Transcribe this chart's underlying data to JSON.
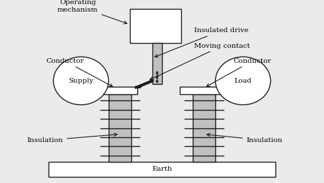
{
  "bg_color": "#ebebeb",
  "line_color": "#1a1a1a",
  "fill_gray": "#c0c0c0",
  "fill_white": "#ffffff",
  "labels": {
    "operating_mechanism": "Operating\nmechanism",
    "insulated_drive": "Insulated drive",
    "moving_contact": "Moving contact",
    "conductor_left": "Conductor",
    "conductor_right": "Conductor",
    "supply": "Supply",
    "load": "Load",
    "insulation_left": "Insulation",
    "insulation_right": "Insulation",
    "earth": "Earth"
  },
  "font_size": 7.5,
  "fig_width": 4.74,
  "fig_height": 2.68,
  "dpi": 100
}
